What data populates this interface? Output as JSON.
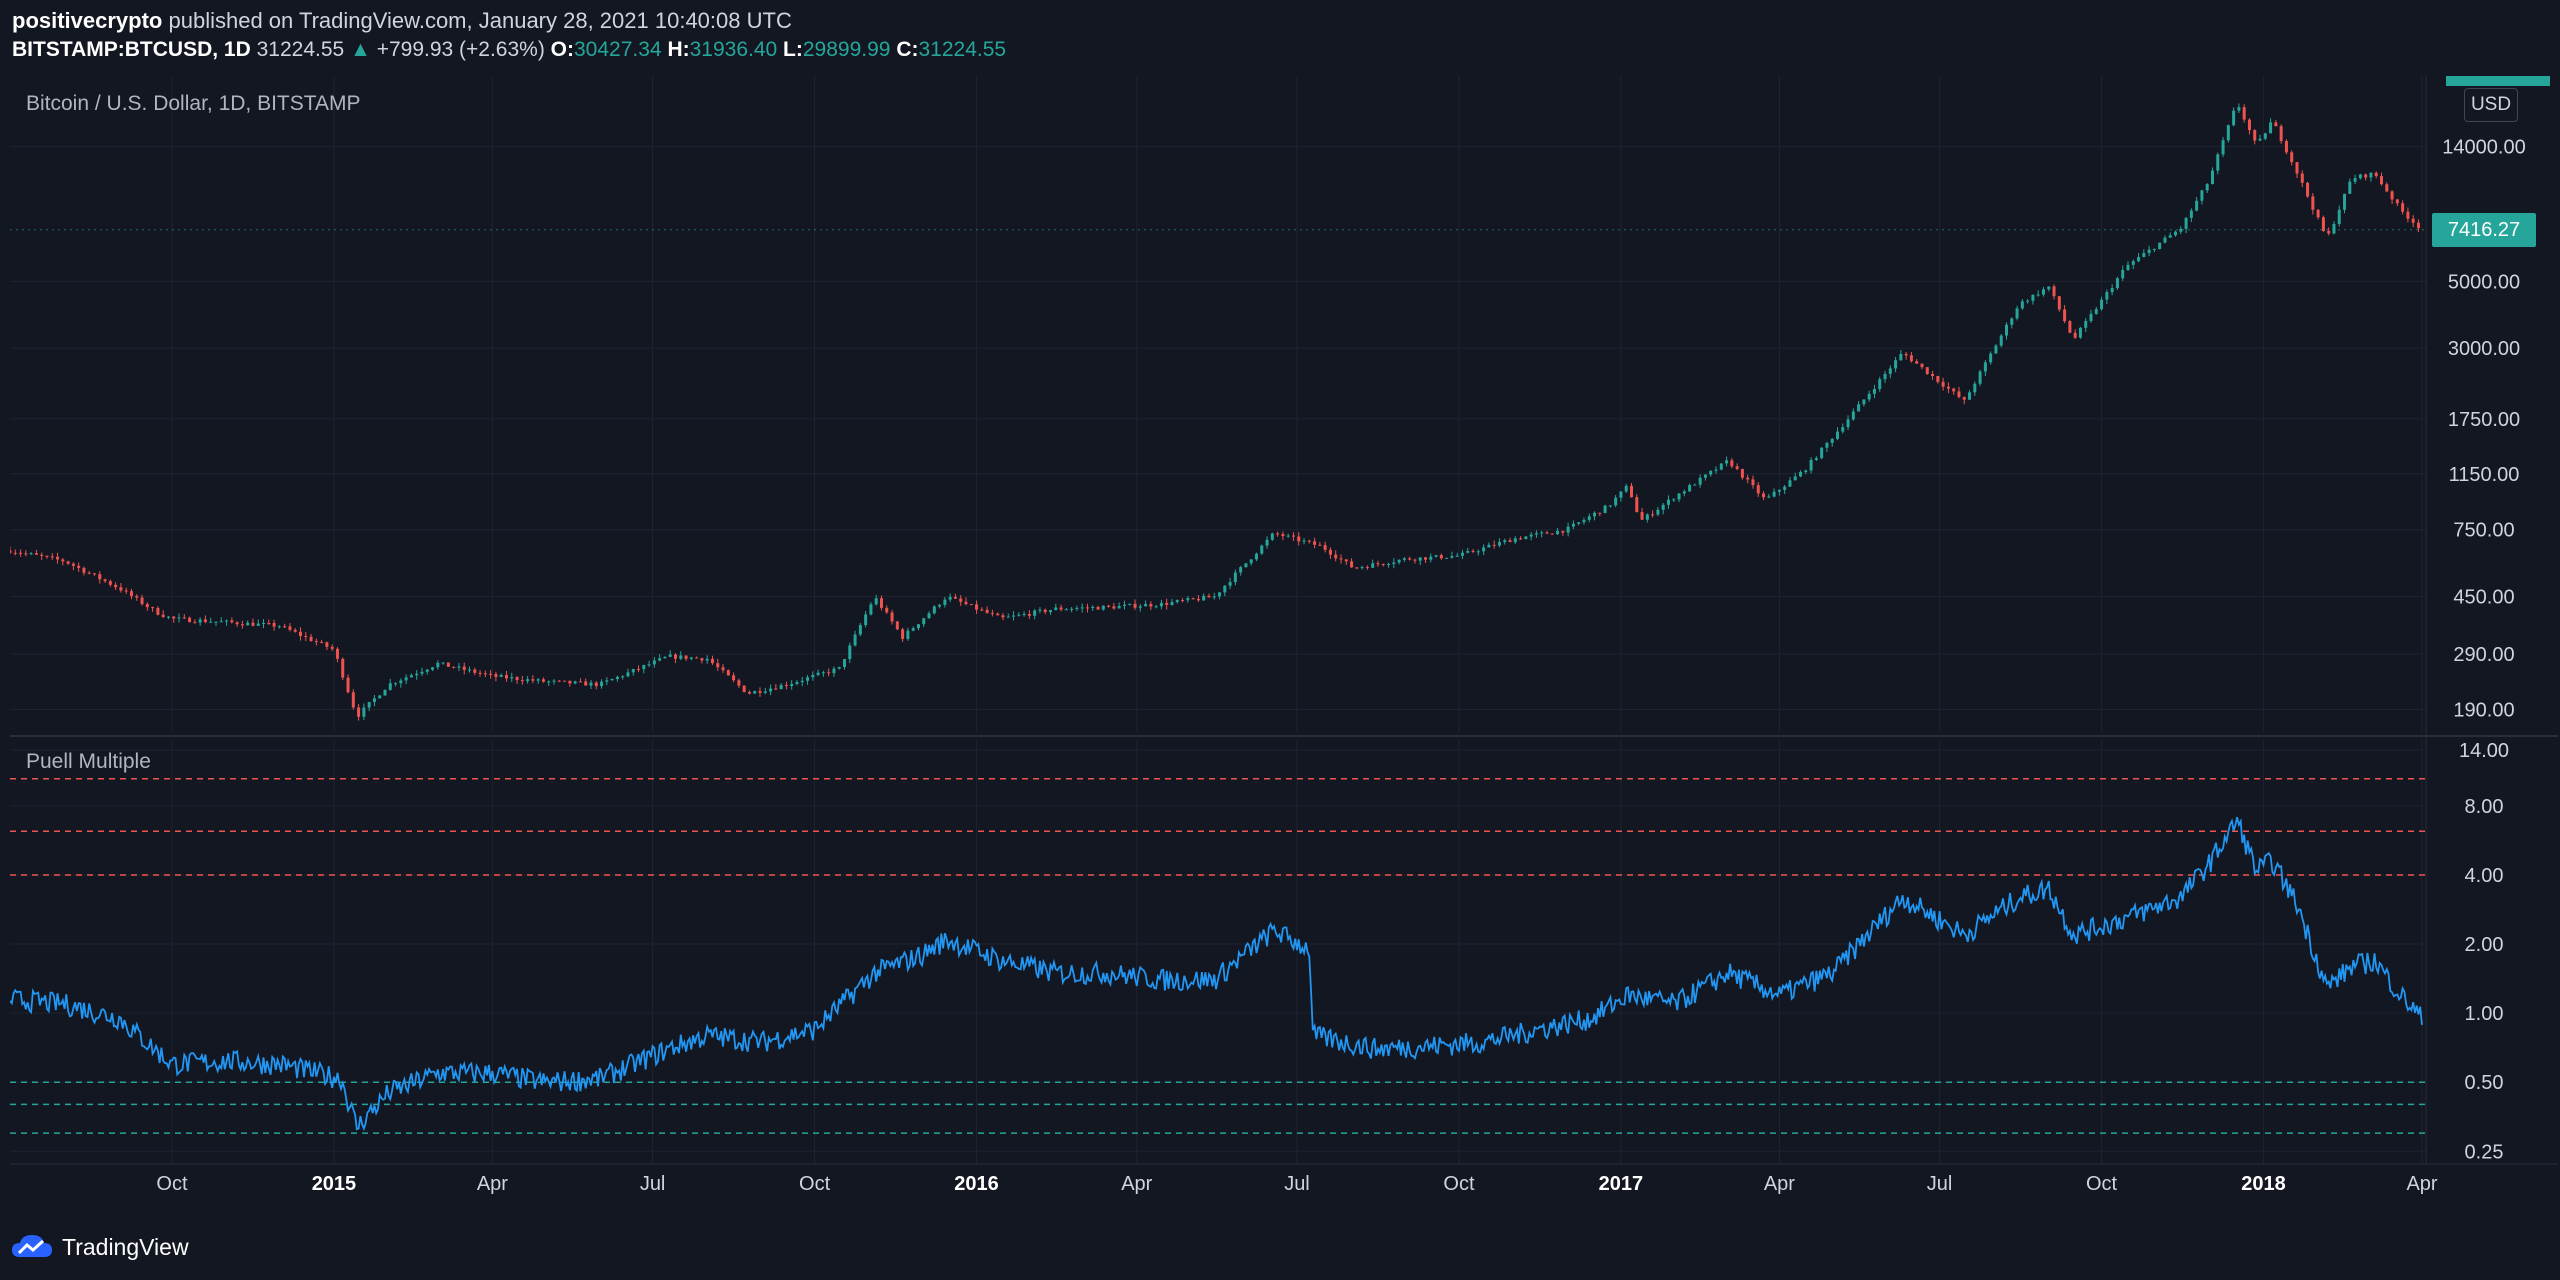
{
  "header": {
    "publisher": "positivecrypto",
    "published_text": "published on TradingView.com, January 28, 2021 10:40:08 UTC",
    "symbol": "BITSTAMP:BTCUSD, 1D",
    "last": "31224.55",
    "change": "+799.93 (+2.63%)",
    "o_label": "O:",
    "o_value": "30427.34",
    "h_label": "H:",
    "h_value": "31936.40",
    "l_label": "L:",
    "l_value": "29899.99",
    "c_label": "C:",
    "c_value": "31224.55"
  },
  "price_pane": {
    "title": "Bitcoin / U.S. Dollar, 1D, BITSTAMP",
    "currency": "USD",
    "last_price_tag": "7416.27"
  },
  "indicator_pane": {
    "title": "Puell Multiple"
  },
  "footer": {
    "brand": "TradingView"
  },
  "colors": {
    "background": "#131722",
    "up": "#26a69a",
    "down": "#ef5350",
    "indicator": "#2196f3",
    "grid": "#1f2330",
    "upper_band": "#ef5350",
    "lower_band": "#26a69a"
  },
  "chart_data": [
    {
      "type": "candlestick",
      "title": "Bitcoin / U.S. Dollar, 1D, BITSTAMP",
      "y_scale": "log",
      "y_ticks": [
        190,
        290,
        450,
        750,
        1150,
        1750,
        3000,
        5000,
        14000
      ],
      "y_tick_labels": [
        "190.00",
        "290.00",
        "450.00",
        "750.00",
        "1150.00",
        "1750.00",
        "3000.00",
        "5000.00",
        "14000.00"
      ],
      "x_ticks": [
        "Oct",
        "2015",
        "Apr",
        "Jul",
        "Oct",
        "2016",
        "Apr",
        "Jul",
        "Oct",
        "2017",
        "Apr",
        "Jul",
        "Oct",
        "2018",
        "Apr"
      ],
      "x_tick_dates": [
        "2014-10-01",
        "2015-01-01",
        "2015-04-01",
        "2015-07-01",
        "2015-10-01",
        "2016-01-01",
        "2016-04-01",
        "2016-07-01",
        "2016-10-01",
        "2017-01-01",
        "2017-04-01",
        "2017-07-01",
        "2017-10-01",
        "2018-01-01",
        "2018-04-01"
      ],
      "approx_close_path": [
        {
          "date": "2014-07-01",
          "value": 640
        },
        {
          "date": "2014-08-01",
          "value": 590
        },
        {
          "date": "2014-09-01",
          "value": 480
        },
        {
          "date": "2014-09-22",
          "value": 400
        },
        {
          "date": "2014-10-01",
          "value": 380
        },
        {
          "date": "2014-11-01",
          "value": 370
        },
        {
          "date": "2014-12-01",
          "value": 360
        },
        {
          "date": "2015-01-01",
          "value": 300
        },
        {
          "date": "2015-01-14",
          "value": 180
        },
        {
          "date": "2015-02-01",
          "value": 230
        },
        {
          "date": "2015-03-01",
          "value": 270
        },
        {
          "date": "2015-04-01",
          "value": 245
        },
        {
          "date": "2015-05-01",
          "value": 235
        },
        {
          "date": "2015-06-01",
          "value": 230
        },
        {
          "date": "2015-07-10",
          "value": 285
        },
        {
          "date": "2015-08-01",
          "value": 280
        },
        {
          "date": "2015-08-24",
          "value": 215
        },
        {
          "date": "2015-09-15",
          "value": 230
        },
        {
          "date": "2015-10-15",
          "value": 260
        },
        {
          "date": "2015-11-04",
          "value": 450
        },
        {
          "date": "2015-11-20",
          "value": 330
        },
        {
          "date": "2015-12-15",
          "value": 450
        },
        {
          "date": "2016-01-15",
          "value": 380
        },
        {
          "date": "2016-02-15",
          "value": 410
        },
        {
          "date": "2016-03-15",
          "value": 415
        },
        {
          "date": "2016-04-15",
          "value": 425
        },
        {
          "date": "2016-05-15",
          "value": 450
        },
        {
          "date": "2016-06-18",
          "value": 730
        },
        {
          "date": "2016-07-15",
          "value": 660
        },
        {
          "date": "2016-08-02",
          "value": 560
        },
        {
          "date": "2016-09-01",
          "value": 600
        },
        {
          "date": "2016-10-01",
          "value": 615
        },
        {
          "date": "2016-11-01",
          "value": 700
        },
        {
          "date": "2016-12-01",
          "value": 750
        },
        {
          "date": "2016-12-25",
          "value": 900
        },
        {
          "date": "2017-01-05",
          "value": 1050
        },
        {
          "date": "2017-01-12",
          "value": 800
        },
        {
          "date": "2017-02-01",
          "value": 970
        },
        {
          "date": "2017-03-03",
          "value": 1270
        },
        {
          "date": "2017-03-24",
          "value": 940
        },
        {
          "date": "2017-04-15",
          "value": 1180
        },
        {
          "date": "2017-05-10",
          "value": 1750
        },
        {
          "date": "2017-06-10",
          "value": 2900
        },
        {
          "date": "2017-07-15",
          "value": 2000
        },
        {
          "date": "2017-08-15",
          "value": 4200
        },
        {
          "date": "2017-09-01",
          "value": 4800
        },
        {
          "date": "2017-09-15",
          "value": 3200
        },
        {
          "date": "2017-10-15",
          "value": 5600
        },
        {
          "date": "2017-11-15",
          "value": 7500
        },
        {
          "date": "2017-12-01",
          "value": 10800
        },
        {
          "date": "2017-12-17",
          "value": 19600
        },
        {
          "date": "2017-12-28",
          "value": 14000
        },
        {
          "date": "2018-01-06",
          "value": 17100
        },
        {
          "date": "2018-01-20",
          "value": 11500
        },
        {
          "date": "2018-02-06",
          "value": 6900
        },
        {
          "date": "2018-02-20",
          "value": 11000
        },
        {
          "date": "2018-03-05",
          "value": 11400
        },
        {
          "date": "2018-03-20",
          "value": 8600
        },
        {
          "date": "2018-04-01",
          "value": 7416
        }
      ]
    },
    {
      "type": "line",
      "title": "Puell Multiple",
      "y_scale": "log",
      "y_ticks": [
        0.25,
        0.5,
        1,
        2,
        4,
        8,
        14
      ],
      "y_tick_labels": [
        "0.25",
        "0.50",
        "1.00",
        "2.00",
        "4.00",
        "8.00",
        "14.00"
      ],
      "reference_lines": [
        {
          "value": 10.5,
          "color": "#ef5350"
        },
        {
          "value": 6.2,
          "color": "#ef5350"
        },
        {
          "value": 4.0,
          "color": "#ef5350"
        },
        {
          "value": 0.5,
          "color": "#26a69a"
        },
        {
          "value": 0.4,
          "color": "#26a69a"
        },
        {
          "value": 0.3,
          "color": "#26a69a"
        }
      ],
      "approx_series": [
        {
          "date": "2014-07-01",
          "value": 1.15
        },
        {
          "date": "2014-08-01",
          "value": 1.1
        },
        {
          "date": "2014-09-01",
          "value": 0.95
        },
        {
          "date": "2014-10-01",
          "value": 0.6
        },
        {
          "date": "2014-11-01",
          "value": 0.62
        },
        {
          "date": "2014-12-01",
          "value": 0.6
        },
        {
          "date": "2015-01-05",
          "value": 0.52
        },
        {
          "date": "2015-01-14",
          "value": 0.32
        },
        {
          "date": "2015-02-01",
          "value": 0.45
        },
        {
          "date": "2015-03-01",
          "value": 0.55
        },
        {
          "date": "2015-04-01",
          "value": 0.55
        },
        {
          "date": "2015-05-01",
          "value": 0.5
        },
        {
          "date": "2015-06-01",
          "value": 0.52
        },
        {
          "date": "2015-07-10",
          "value": 0.7
        },
        {
          "date": "2015-08-01",
          "value": 0.8
        },
        {
          "date": "2015-09-01",
          "value": 0.75
        },
        {
          "date": "2015-10-01",
          "value": 0.85
        },
        {
          "date": "2015-11-04",
          "value": 1.5
        },
        {
          "date": "2015-12-01",
          "value": 1.8
        },
        {
          "date": "2015-12-15",
          "value": 2.1
        },
        {
          "date": "2016-01-15",
          "value": 1.7
        },
        {
          "date": "2016-02-15",
          "value": 1.5
        },
        {
          "date": "2016-03-15",
          "value": 1.5
        },
        {
          "date": "2016-04-15",
          "value": 1.4
        },
        {
          "date": "2016-05-15",
          "value": 1.4
        },
        {
          "date": "2016-06-18",
          "value": 2.3
        },
        {
          "date": "2016-07-08",
          "value": 1.9
        },
        {
          "date": "2016-07-10",
          "value": 0.8
        },
        {
          "date": "2016-08-15",
          "value": 0.7
        },
        {
          "date": "2016-09-15",
          "value": 0.72
        },
        {
          "date": "2016-10-15",
          "value": 0.75
        },
        {
          "date": "2016-11-15",
          "value": 0.85
        },
        {
          "date": "2016-12-15",
          "value": 0.95
        },
        {
          "date": "2017-01-05",
          "value": 1.2
        },
        {
          "date": "2017-02-01",
          "value": 1.1
        },
        {
          "date": "2017-03-03",
          "value": 1.5
        },
        {
          "date": "2017-04-01",
          "value": 1.2
        },
        {
          "date": "2017-05-01",
          "value": 1.5
        },
        {
          "date": "2017-06-10",
          "value": 3.2
        },
        {
          "date": "2017-07-15",
          "value": 2.2
        },
        {
          "date": "2017-08-15",
          "value": 3.2
        },
        {
          "date": "2017-09-01",
          "value": 3.5
        },
        {
          "date": "2017-09-15",
          "value": 2.2
        },
        {
          "date": "2017-10-15",
          "value": 2.6
        },
        {
          "date": "2017-11-15",
          "value": 3.2
        },
        {
          "date": "2017-12-01",
          "value": 4.5
        },
        {
          "date": "2017-12-17",
          "value": 6.9
        },
        {
          "date": "2017-12-28",
          "value": 4.2
        },
        {
          "date": "2018-01-06",
          "value": 4.6
        },
        {
          "date": "2018-01-20",
          "value": 3.0
        },
        {
          "date": "2018-02-06",
          "value": 1.3
        },
        {
          "date": "2018-02-20",
          "value": 1.6
        },
        {
          "date": "2018-03-05",
          "value": 1.7
        },
        {
          "date": "2018-03-20",
          "value": 1.2
        },
        {
          "date": "2018-04-01",
          "value": 0.95
        }
      ]
    }
  ]
}
